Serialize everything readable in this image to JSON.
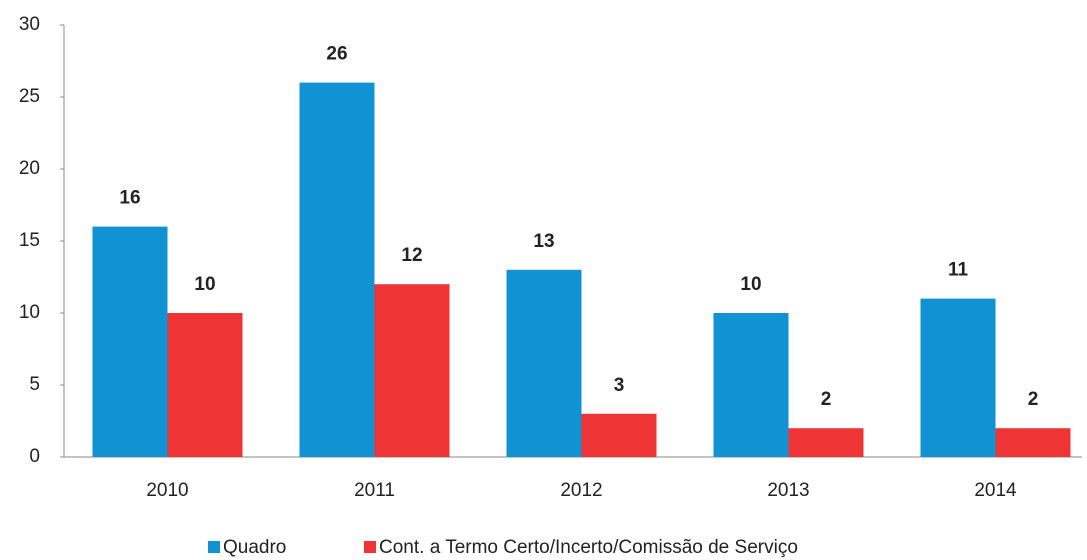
{
  "chart_data": {
    "type": "bar",
    "categories": [
      "2010",
      "2011",
      "2012",
      "2013",
      "2014"
    ],
    "series": [
      {
        "name": "Quadro",
        "color": "#1192d3",
        "values": [
          16,
          26,
          13,
          10,
          11
        ]
      },
      {
        "name": "Cont. a Termo Certo/Incerto/Comissão de Serviço",
        "color": "#ee3434",
        "values": [
          10,
          12,
          3,
          2,
          2
        ]
      }
    ],
    "ylim": [
      0,
      30
    ],
    "yticks": [
      0,
      5,
      10,
      15,
      20,
      25,
      30
    ],
    "grid": false,
    "legend": "bottom"
  }
}
